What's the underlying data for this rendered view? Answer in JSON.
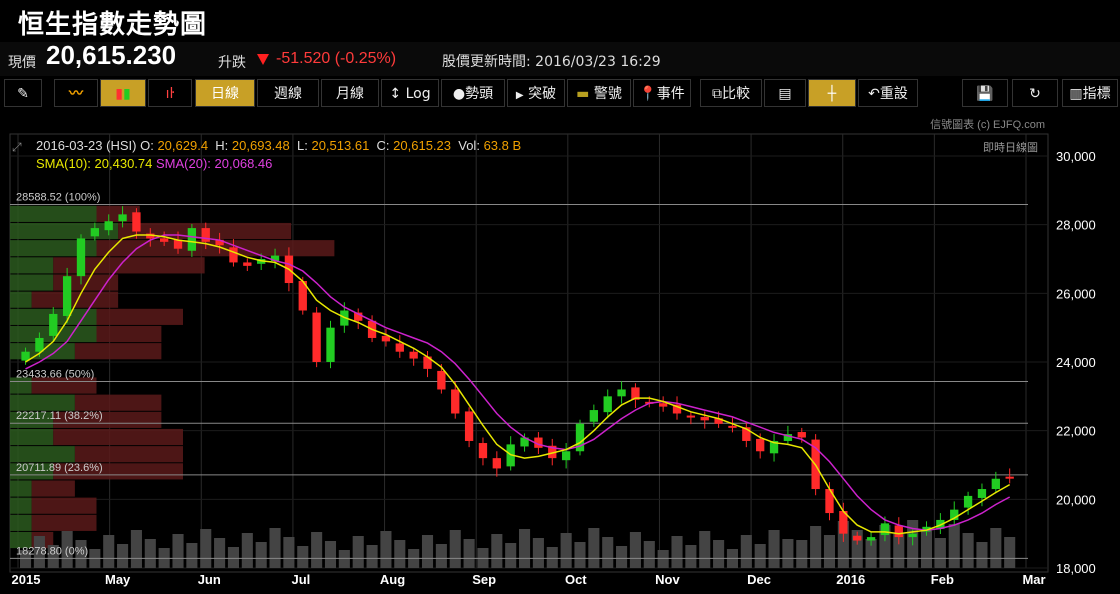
{
  "page": {
    "title": "恒生指數走勢圖"
  },
  "quote": {
    "price_label": "現價",
    "price": "20,615.230",
    "change_label": "升跌",
    "change": "-51.520 (-0.25%)",
    "update_label": "股價更新時間:",
    "update_time": "2016/03/23 16:29"
  },
  "toolbar": {
    "day": "日線",
    "week": "週線",
    "month": "月線",
    "log": "Log",
    "trend": "勢頭",
    "breakout": "突破",
    "alert": "警號",
    "event": "事件",
    "compare": "比較",
    "reset": "重設",
    "indicator": "指標"
  },
  "watermark": "信號圖表 (c) EJFQ.com",
  "live_label": "即時日線圖",
  "ohlc": {
    "date": "2016-03-23",
    "symbol": "(HSI)",
    "o_label": "O:",
    "o": "20,629.4",
    "h_label": "H:",
    "h": "20,693.48",
    "l_label": "L:",
    "l": "20,513.61",
    "c_label": "C:",
    "c": "20,615.23",
    "vol_label": "Vol:",
    "vol": "63.8 B"
  },
  "sma": {
    "sma10_label": "SMA(10):",
    "sma10": "20,430.74",
    "sma20_label": "SMA(20):",
    "sma20": "20,068.46"
  },
  "colors": {
    "up": "#22cc22",
    "down": "#ff2a2a",
    "sma10": "#e8e800",
    "sma20": "#cc22cc",
    "accent": "#c8a026"
  },
  "chart_data": {
    "type": "candlestick",
    "x_labels": [
      "2015",
      "May",
      "Jun",
      "Jul",
      "Aug",
      "Sep",
      "Oct",
      "Nov",
      "Dec",
      "2016",
      "Feb",
      "Mar"
    ],
    "y_ticks": [
      18000,
      20000,
      22000,
      24000,
      26000,
      28000,
      30000
    ],
    "y_tick_labels": [
      "18,000",
      "20,000",
      "22,000",
      "24,000",
      "26,000",
      "28,000",
      "30,000"
    ],
    "ylim": [
      18000,
      30000
    ],
    "fib_levels": [
      {
        "label": "28588.52 (100%)",
        "value": 28588.52
      },
      {
        "label": "23433.66 (50%)",
        "value": 23433.66
      },
      {
        "label": "22217.11 (38.2%)",
        "value": 22217.11
      },
      {
        "label": "20711.89 (23.6%)",
        "value": 20711.89
      },
      {
        "label": "18278.80 (0%)",
        "value": 18278.8
      }
    ],
    "closes": [
      24300,
      24700,
      25400,
      26500,
      27600,
      27900,
      28100,
      28300,
      27800,
      27600,
      27500,
      27300,
      27900,
      27500,
      27400,
      26900,
      26800,
      27000,
      27100,
      26300,
      25500,
      24000,
      25000,
      25500,
      25200,
      24700,
      24600,
      24300,
      24100,
      23800,
      23200,
      22500,
      21700,
      21200,
      20900,
      21600,
      21800,
      21500,
      21200,
      21400,
      22200,
      22600,
      23000,
      23200,
      22900,
      22800,
      22700,
      22500,
      22400,
      22300,
      22200,
      22100,
      21700,
      21400,
      21700,
      21900,
      21800,
      20300,
      19600,
      19000,
      18800,
      18900,
      19300,
      18900,
      19000,
      19200,
      19400,
      19700,
      20100,
      20300,
      20600,
      20615
    ],
    "sma10": [
      24000,
      24250,
      24600,
      25200,
      26000,
      26700,
      27200,
      27600,
      27700,
      27700,
      27650,
      27550,
      27500,
      27450,
      27350,
      27200,
      27050,
      26950,
      26900,
      26700,
      26350,
      25800,
      25500,
      25300,
      25150,
      24950,
      24800,
      24600,
      24400,
      24150,
      23850,
      23350,
      22750,
      22150,
      21600,
      21300,
      21200,
      21250,
      21350,
      21450,
      21650,
      22000,
      22400,
      22750,
      22950,
      22950,
      22850,
      22700,
      22550,
      22450,
      22350,
      22200,
      22050,
      21800,
      21650,
      21600,
      21500,
      21000,
      20300,
      19650,
      19250,
      19050,
      19050,
      19000,
      19050,
      19100,
      19250,
      19450,
      19700,
      19950,
      20200,
      20430
    ],
    "sma20": [
      23800,
      24000,
      24250,
      24600,
      25200,
      25800,
      26400,
      26900,
      27300,
      27550,
      27700,
      27700,
      27650,
      27600,
      27550,
      27400,
      27250,
      27100,
      26950,
      26850,
      26650,
      26300,
      25900,
      25600,
      25400,
      25200,
      25000,
      24850,
      24700,
      24550,
      24300,
      23950,
      23500,
      23000,
      22500,
      22100,
      21800,
      21600,
      21500,
      21450,
      21550,
      21750,
      22050,
      22350,
      22600,
      22800,
      22850,
      22800,
      22700,
      22600,
      22500,
      22400,
      22250,
      22100,
      21950,
      21850,
      21750,
      21500,
      21100,
      20600,
      20100,
      19700,
      19400,
      19250,
      19150,
      19100,
      19150,
      19250,
      19400,
      19600,
      19850,
      20068
    ],
    "volume_profile": [
      {
        "price": 28300,
        "bull": 4,
        "bear": 2
      },
      {
        "price": 27800,
        "bull": 5,
        "bear": 8
      },
      {
        "price": 27300,
        "bull": 4,
        "bear": 11
      },
      {
        "price": 26800,
        "bull": 2,
        "bear": 7
      },
      {
        "price": 26300,
        "bull": 2,
        "bear": 3
      },
      {
        "price": 25800,
        "bull": 1,
        "bear": 4
      },
      {
        "price": 25300,
        "bull": 4,
        "bear": 4
      },
      {
        "price": 24800,
        "bull": 4,
        "bear": 3
      },
      {
        "price": 24300,
        "bull": 3,
        "bear": 4
      },
      {
        "price": 23300,
        "bull": 1,
        "bear": 3
      },
      {
        "price": 22800,
        "bull": 3,
        "bear": 4
      },
      {
        "price": 22300,
        "bull": 2,
        "bear": 5
      },
      {
        "price": 21800,
        "bull": 2,
        "bear": 6
      },
      {
        "price": 21300,
        "bull": 3,
        "bear": 5
      },
      {
        "price": 20800,
        "bull": 2,
        "bear": 6
      },
      {
        "price": 20300,
        "bull": 1,
        "bear": 2
      },
      {
        "price": 19800,
        "bull": 1,
        "bear": 3
      },
      {
        "price": 19300,
        "bull": 1,
        "bear": 3
      },
      {
        "price": 18800,
        "bull": 1,
        "bear": 1
      }
    ],
    "volume_unit": "B"
  }
}
